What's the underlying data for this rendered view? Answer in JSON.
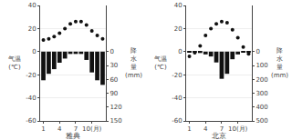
{
  "chart_data": [
    {
      "type": "bar",
      "xlabel": "雅典",
      "ylabel": "气温\n(℃)",
      "y2label": "降\n水\n量\n(mm)",
      "x": [
        1,
        2,
        3,
        4,
        5,
        6,
        7,
        8,
        9,
        10,
        11,
        12
      ],
      "series": [
        {
          "type": "bar",
          "axis": "y2",
          "color": "#111111",
          "values": [
            62,
            48,
            38,
            24,
            15,
            5,
            5,
            5,
            18,
            45,
            62,
            72
          ]
        },
        {
          "type": "scatter",
          "color": "#111111",
          "marker": "circle",
          "values": [
            10,
            11,
            13,
            16,
            20,
            24,
            26,
            26,
            23,
            18,
            14,
            11
          ]
        }
      ],
      "xlim": [
        0.4,
        12.6
      ],
      "xticks": [
        1,
        4,
        7,
        {
          "value": 10,
          "label": "10(月)"
        }
      ],
      "ylim": [
        -60,
        40
      ],
      "yticks": [
        -60,
        -40,
        -20,
        0,
        20,
        40
      ],
      "y2lim": [
        150,
        -100
      ],
      "y2ticks": [
        0,
        30,
        60,
        90,
        120,
        150
      ],
      "grid": true
    },
    {
      "type": "bar",
      "xlabel": "北京",
      "ylabel": "气温\n(℃)",
      "y2label": "降\n水\n量\n(mm)",
      "x": [
        1,
        2,
        3,
        4,
        5,
        6,
        7,
        8,
        9,
        10,
        11,
        12
      ],
      "series": [
        {
          "type": "bar",
          "axis": "y2",
          "color": "#111111",
          "values": [
            3,
            5,
            10,
            20,
            35,
            78,
            196,
            160,
            55,
            20,
            8,
            3
          ]
        },
        {
          "type": "scatter",
          "color": "#111111",
          "marker": "circle",
          "values": [
            -4,
            -1,
            5,
            14,
            20,
            24,
            26,
            25,
            19,
            12,
            4,
            -2
          ]
        }
      ],
      "xlim": [
        0.4,
        12.6
      ],
      "xticks": [
        1,
        4,
        7,
        {
          "value": 10,
          "label": "10(月)"
        }
      ],
      "ylim": [
        -60,
        40
      ],
      "yticks": [
        -60,
        -40,
        -20,
        0,
        20,
        40
      ],
      "y2lim": [
        500,
        -333.3333333333333
      ],
      "y2ticks": [
        0,
        100,
        200,
        300,
        400,
        500
      ],
      "grid": true
    }
  ]
}
